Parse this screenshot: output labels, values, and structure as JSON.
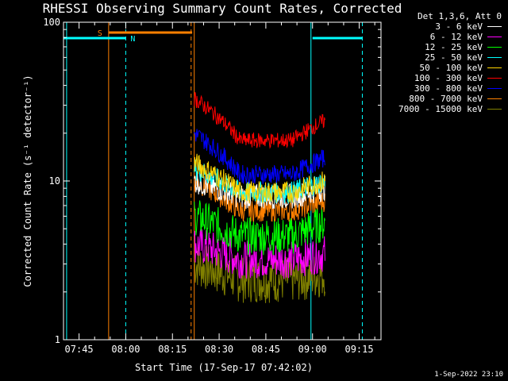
{
  "chart_data": {
    "type": "line",
    "title": "RHESSI Observing Summary Count Rates, Corrected",
    "xlabel": "Start Time (17-Sep-17 07:42:02)",
    "ylabel": "Corrected Count Rate (s⁻¹ detector⁻¹)",
    "y_scale": "log",
    "ylim": [
      1,
      100
    ],
    "xlim": [
      "07:40",
      "09:22"
    ],
    "x_ticks": [
      "07:45",
      "08:00",
      "08:15",
      "08:30",
      "08:45",
      "09:00",
      "09:15"
    ],
    "y_ticks": [
      "1",
      "10",
      "100"
    ],
    "legend_title": "Det 1,3,6, Att 0",
    "legend_position": "right",
    "data_start": "08:22",
    "data_end": "09:04",
    "series": [
      {
        "name": "3 - 6 keV",
        "color": "#ffffff",
        "start": 10,
        "min": 8,
        "end": 9,
        "noise": 0.08
      },
      {
        "name": "6 - 12 keV",
        "color": "#ff00ff",
        "start": 4,
        "min": 3.2,
        "end": 3.5,
        "noise": 0.12
      },
      {
        "name": "12 - 25 keV",
        "color": "#00ff00",
        "start": 6,
        "min": 4.5,
        "end": 5.5,
        "noise": 0.12
      },
      {
        "name": "25 - 50 keV",
        "color": "#00ffff",
        "start": 12,
        "min": 8.5,
        "end": 10,
        "noise": 0.07
      },
      {
        "name": "50 - 100 keV",
        "color": "#ffd400",
        "start": 13,
        "min": 8.5,
        "end": 10,
        "noise": 0.07
      },
      {
        "name": "100 - 300 keV",
        "color": "#ff0000",
        "start": 33,
        "min": 18,
        "end": 24,
        "noise": 0.05
      },
      {
        "name": "300 - 800 keV",
        "color": "#0000ff",
        "start": 20,
        "min": 11,
        "end": 14,
        "noise": 0.06
      },
      {
        "name": "800 - 7000 keV",
        "color": "#ff8000",
        "start": 10,
        "min": 6.5,
        "end": 7.5,
        "noise": 0.07
      },
      {
        "name": "7000 - 15000 keV",
        "color": "#808000",
        "start": 3,
        "min": 2.4,
        "end": 2.6,
        "noise": 0.15
      }
    ],
    "annotations": [
      {
        "label": "S",
        "color": "#ff8000",
        "start": "07:54:30",
        "end": "08:21:20"
      },
      {
        "label": "N",
        "color": "#00ffff",
        "start": "07:40",
        "end": "08:00"
      },
      {
        "label": "",
        "color": "#00ffff",
        "start": "09:00",
        "end": "09:16"
      }
    ],
    "vertical_markers": [
      {
        "time": "07:41",
        "color": "#00ffff",
        "style": "solid"
      },
      {
        "time": "07:54:30",
        "color": "#ff8000",
        "style": "solid"
      },
      {
        "time": "08:00",
        "color": "#00ffff",
        "style": "dashed"
      },
      {
        "time": "08:21",
        "color": "#ff8000",
        "style": "dashed"
      },
      {
        "time": "08:22",
        "color": "#ff8000",
        "style": "solid"
      },
      {
        "time": "08:59:30",
        "color": "#00ffff",
        "style": "solid"
      },
      {
        "time": "09:16",
        "color": "#00ffff",
        "style": "dashed"
      }
    ]
  },
  "footer": {
    "timestamp": "1-Sep-2022 23:10"
  }
}
